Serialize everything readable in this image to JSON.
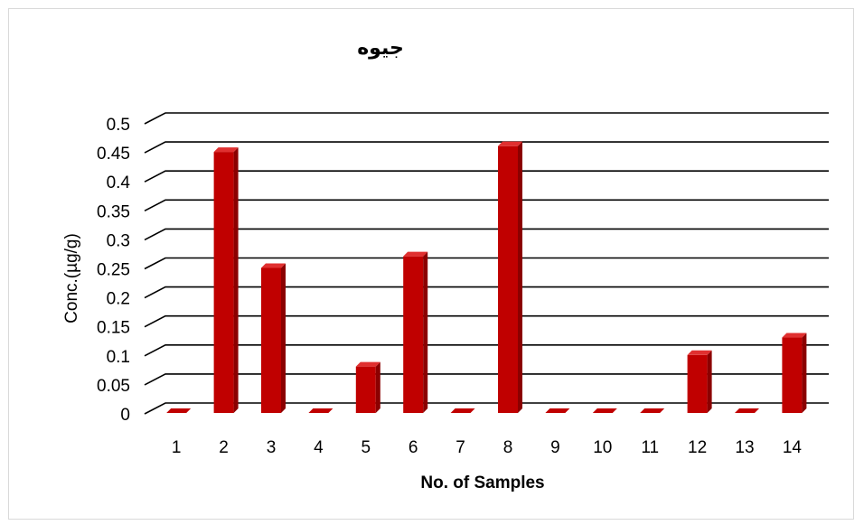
{
  "chart_data": {
    "type": "bar",
    "title": "جيوه",
    "xlabel": "No. of Samples",
    "ylabel": "Conc.(µg/g)",
    "categories": [
      "1",
      "2",
      "3",
      "4",
      "5",
      "6",
      "7",
      "8",
      "9",
      "10",
      "11",
      "12",
      "13",
      "14"
    ],
    "values": [
      0,
      0.45,
      0.25,
      0,
      0.08,
      0.27,
      0,
      0.46,
      0,
      0,
      0,
      0.1,
      0,
      0.13
    ],
    "yticks": [
      "0",
      "0.05",
      "0.1",
      "0.15",
      "0.2",
      "0.25",
      "0.3",
      "0.35",
      "0.4",
      "0.45",
      "0.5"
    ],
    "ylim": [
      0,
      0.5
    ],
    "grid": true,
    "legend": "none",
    "style": "3d-column",
    "colors": {
      "bar_front": "#c00000",
      "bar_side": "#8b0000",
      "bar_top": "#e03030",
      "grid": "#000000"
    }
  }
}
